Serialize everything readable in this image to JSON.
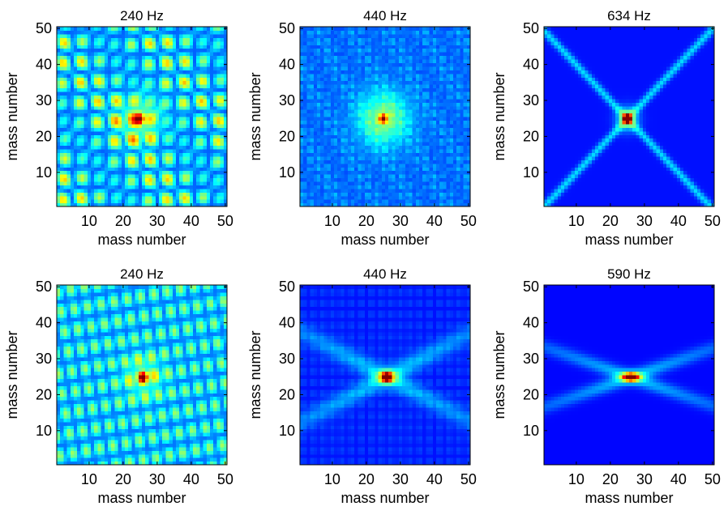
{
  "chart_data": [
    {
      "type": "heatmap",
      "title": "240 Hz",
      "xlabel": "mass number",
      "ylabel": "mass number",
      "xlim": [
        1,
        50
      ],
      "ylim": [
        1,
        50
      ],
      "xticks": [
        "10",
        "20",
        "30",
        "40",
        "50"
      ],
      "yticks": [
        "10",
        "20",
        "30",
        "40",
        "50"
      ],
      "colormap": "jet",
      "pattern": "modal-blobs",
      "peak": {
        "x": 25,
        "y": 25
      },
      "grid": false
    },
    {
      "type": "heatmap",
      "title": "440 Hz",
      "xlabel": "mass number",
      "ylabel": "mass number",
      "xlim": [
        1,
        50
      ],
      "ylim": [
        1,
        50
      ],
      "xticks": [
        "10",
        "20",
        "30",
        "40",
        "50"
      ],
      "yticks": [
        "10",
        "20",
        "30",
        "40",
        "50"
      ],
      "colormap": "jet",
      "pattern": "diffuse-speckle",
      "peak": {
        "x": 25,
        "y": 25
      },
      "grid": false
    },
    {
      "type": "heatmap",
      "title": "634 Hz",
      "xlabel": "mass number",
      "ylabel": "mass number",
      "xlim": [
        1,
        50
      ],
      "ylim": [
        1,
        50
      ],
      "xticks": [
        "10",
        "20",
        "30",
        "40",
        "50"
      ],
      "yticks": [
        "10",
        "20",
        "30",
        "40",
        "50"
      ],
      "colormap": "jet",
      "pattern": "diagonal-x",
      "peak": {
        "x": 25,
        "y": 25
      },
      "grid": false
    },
    {
      "type": "heatmap",
      "title": "240 Hz",
      "xlabel": "mass number",
      "ylabel": "mass number",
      "xlim": [
        1,
        50
      ],
      "ylim": [
        1,
        50
      ],
      "xticks": [
        "10",
        "20",
        "30",
        "40",
        "50"
      ],
      "yticks": [
        "10",
        "20",
        "30",
        "40",
        "50"
      ],
      "colormap": "jet",
      "pattern": "modal-blobs-elongated",
      "peak": {
        "x": 26,
        "y": 25
      },
      "grid": false
    },
    {
      "type": "heatmap",
      "title": "440 Hz",
      "xlabel": "mass number",
      "ylabel": "mass number",
      "xlim": [
        1,
        50
      ],
      "ylim": [
        1,
        50
      ],
      "xticks": [
        "10",
        "20",
        "30",
        "40",
        "50"
      ],
      "yticks": [
        "10",
        "20",
        "30",
        "40",
        "50"
      ],
      "colormap": "jet",
      "pattern": "shallow-x",
      "peak": {
        "x": 26,
        "y": 25
      },
      "grid": false
    },
    {
      "type": "heatmap",
      "title": "590 Hz",
      "xlabel": "mass number",
      "ylabel": "mass number",
      "xlim": [
        1,
        50
      ],
      "ylim": [
        1,
        50
      ],
      "xticks": [
        "10",
        "20",
        "30",
        "40",
        "50"
      ],
      "yticks": [
        "10",
        "20",
        "30",
        "40",
        "50"
      ],
      "colormap": "jet",
      "pattern": "narrow-x",
      "peak": {
        "x": 26,
        "y": 25
      },
      "grid": false
    }
  ]
}
